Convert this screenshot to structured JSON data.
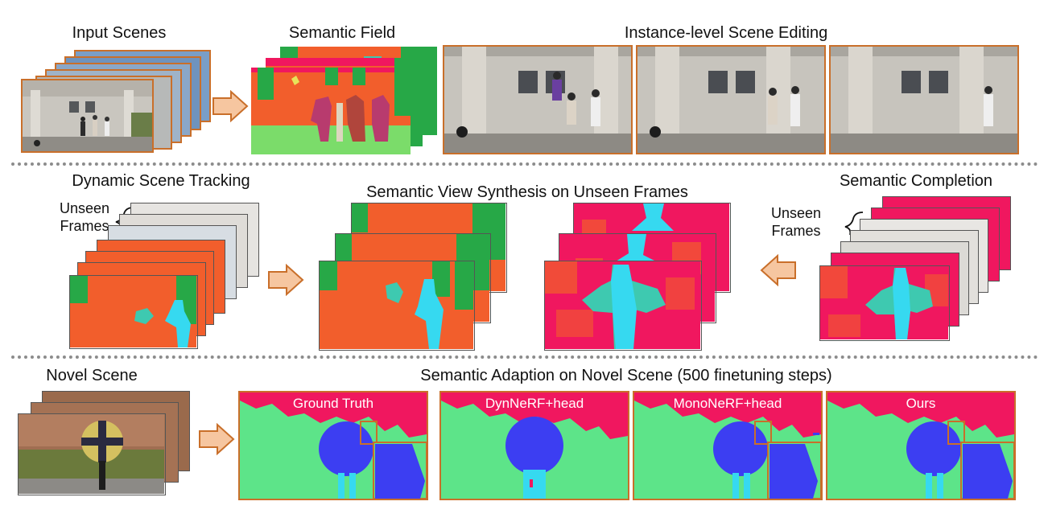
{
  "row1": {
    "input_scenes": "Input Scenes",
    "semantic_field": "Semantic Field",
    "instance_editing": "Instance-level Scene Editing"
  },
  "row2": {
    "dynamic_tracking": "Dynamic Scene Tracking",
    "view_synthesis": "Semantic View Synthesis on Unseen Frames",
    "semantic_completion": "Semantic Completion",
    "unseen_frames_left": "Unseen\nFrames",
    "unseen_frames_right": "Unseen\nFrames"
  },
  "row3": {
    "novel_scene": "Novel Scene",
    "adaption_title": "Semantic Adaption on Novel Scene (500 finetuning steps)",
    "panels": [
      "Ground Truth",
      "DynNeRF+head",
      "MonoNeRF+head",
      "Ours"
    ]
  },
  "colors": {
    "frame_border": "#c96f2a",
    "arrow_fill": "#f6c6a0",
    "seg_orange": "#f25e2c",
    "seg_green": "#27a847",
    "seg_cyan": "#36d9f0",
    "seg_teal": "#3ec9b0",
    "seg_pink": "#f0175f",
    "seg_lightgreen": "#5de489",
    "seg_blue": "#3c3ef2",
    "separator": "#8c8c8c"
  },
  "icons": [
    "arrow-right-icon",
    "arrow-left-icon",
    "brace-icon"
  ]
}
